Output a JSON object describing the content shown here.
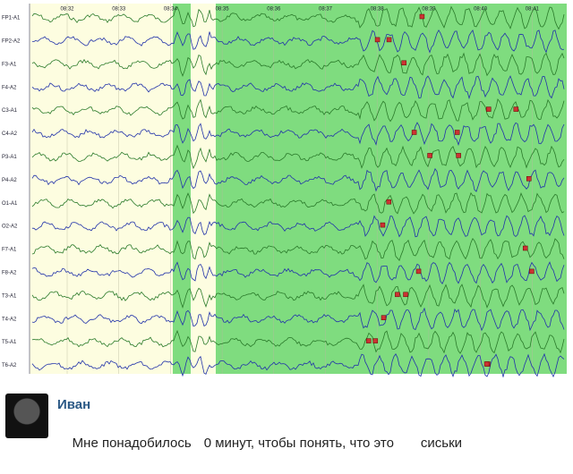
{
  "eeg": {
    "times": [
      "08:32",
      "08:33",
      "08:34",
      "08:35",
      "08:36",
      "08:37",
      "08:38",
      "08:39",
      "08:40",
      "08:41"
    ],
    "channels": [
      "FP1-A1",
      "FP2-A2",
      "F3-A1",
      "F4-A2",
      "C3-A1",
      "C4-A2",
      "P3-A1",
      "P4-A2",
      "O1-A1",
      "O2-A2",
      "F7-A1",
      "F8-A2",
      "T3-A1",
      "T4-A2",
      "T5-A1",
      "T6-A2"
    ]
  },
  "comment": {
    "author": "Иван",
    "text_parts": [
      "Мне понадобилось",
      "0 минут, чтобы понять, что это",
      "сиськи"
    ]
  }
}
